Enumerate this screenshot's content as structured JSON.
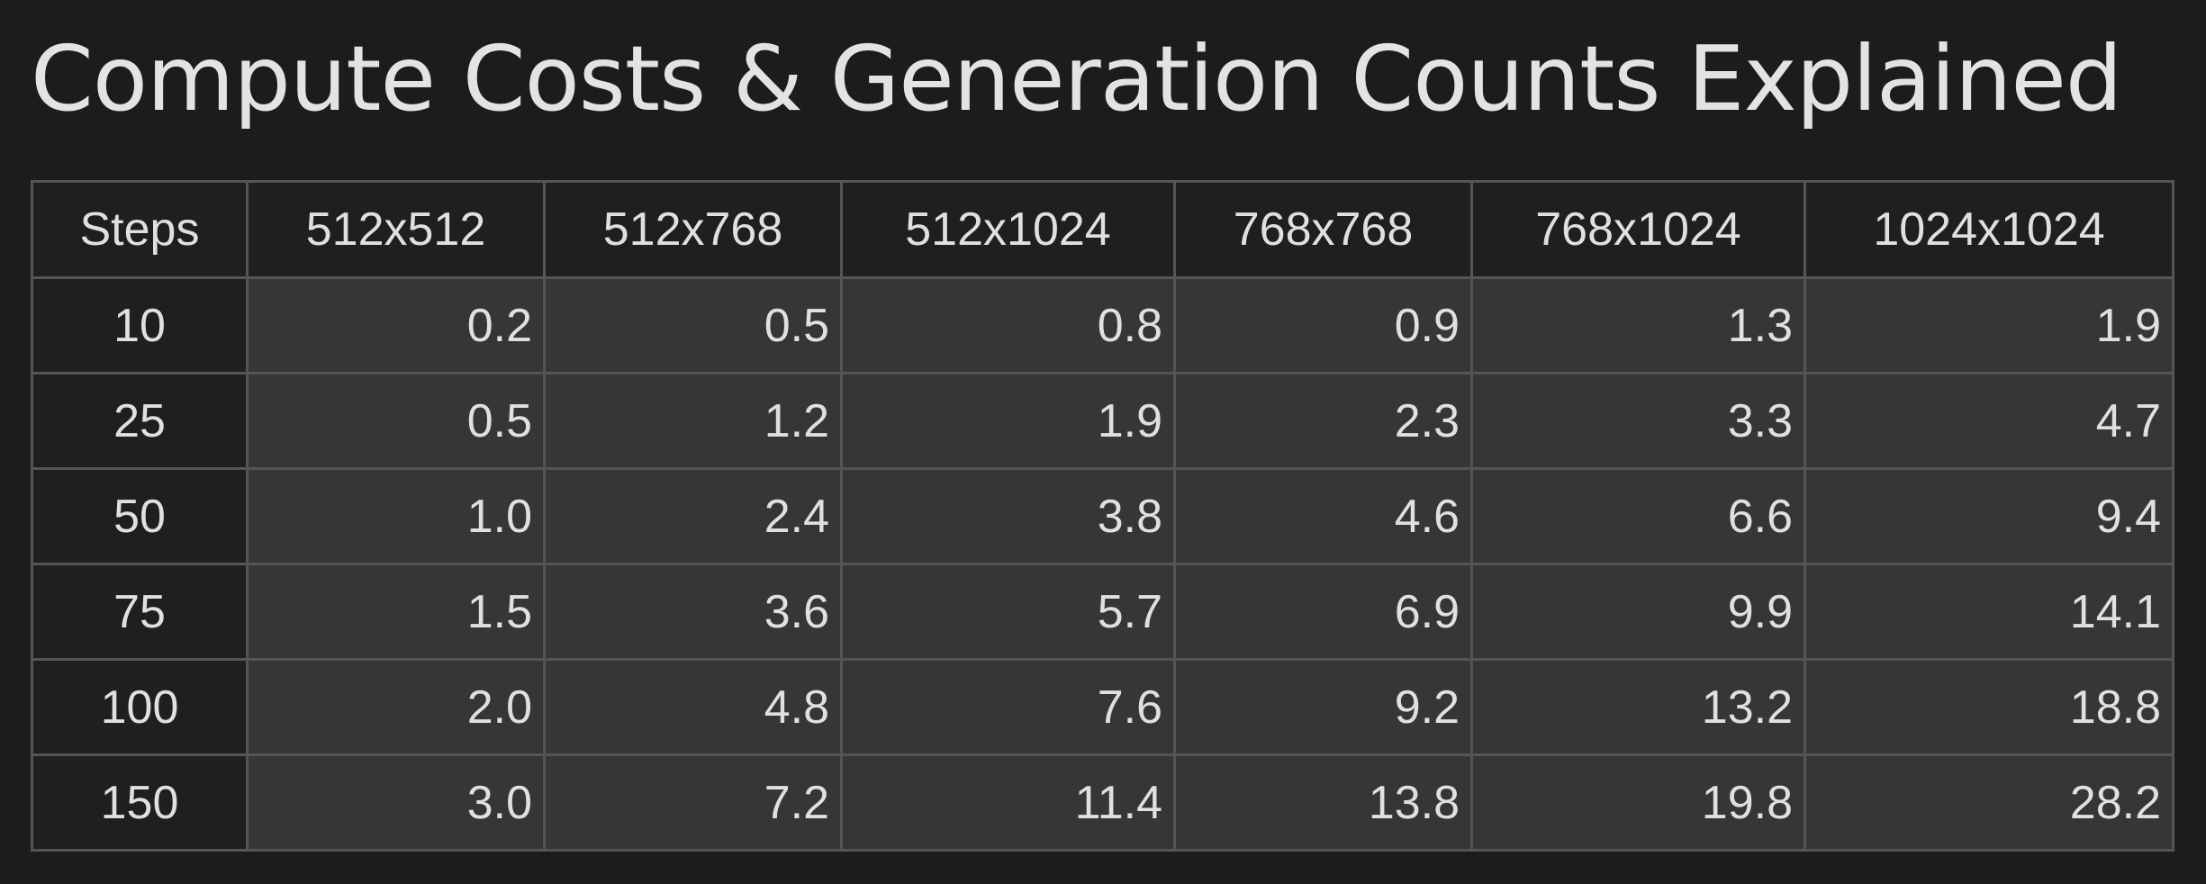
{
  "title": "Compute Costs & Generation Counts Explained",
  "table": {
    "headers": [
      "Steps",
      "512x512",
      "512x768",
      "512x1024",
      "768x768",
      "768x1024",
      "1024x1024"
    ],
    "rows": [
      [
        "10",
        "0.2",
        "0.5",
        "0.8",
        "0.9",
        "1.3",
        "1.9"
      ],
      [
        "25",
        "0.5",
        "1.2",
        "1.9",
        "2.3",
        "3.3",
        "4.7"
      ],
      [
        "50",
        "1.0",
        "2.4",
        "3.8",
        "4.6",
        "6.6",
        "9.4"
      ],
      [
        "75",
        "1.5",
        "3.6",
        "5.7",
        "6.9",
        "9.9",
        "14.1"
      ],
      [
        "100",
        "2.0",
        "4.8",
        "7.6",
        "9.2",
        "13.2",
        "18.8"
      ],
      [
        "150",
        "3.0",
        "7.2",
        "11.4",
        "13.8",
        "19.8",
        "28.2"
      ]
    ]
  },
  "colors": {
    "background": "#1b1c1c",
    "header_cell": "#1e1f20",
    "value_cell": "#353637",
    "border": "#555555",
    "text": "#e0e0e0"
  }
}
